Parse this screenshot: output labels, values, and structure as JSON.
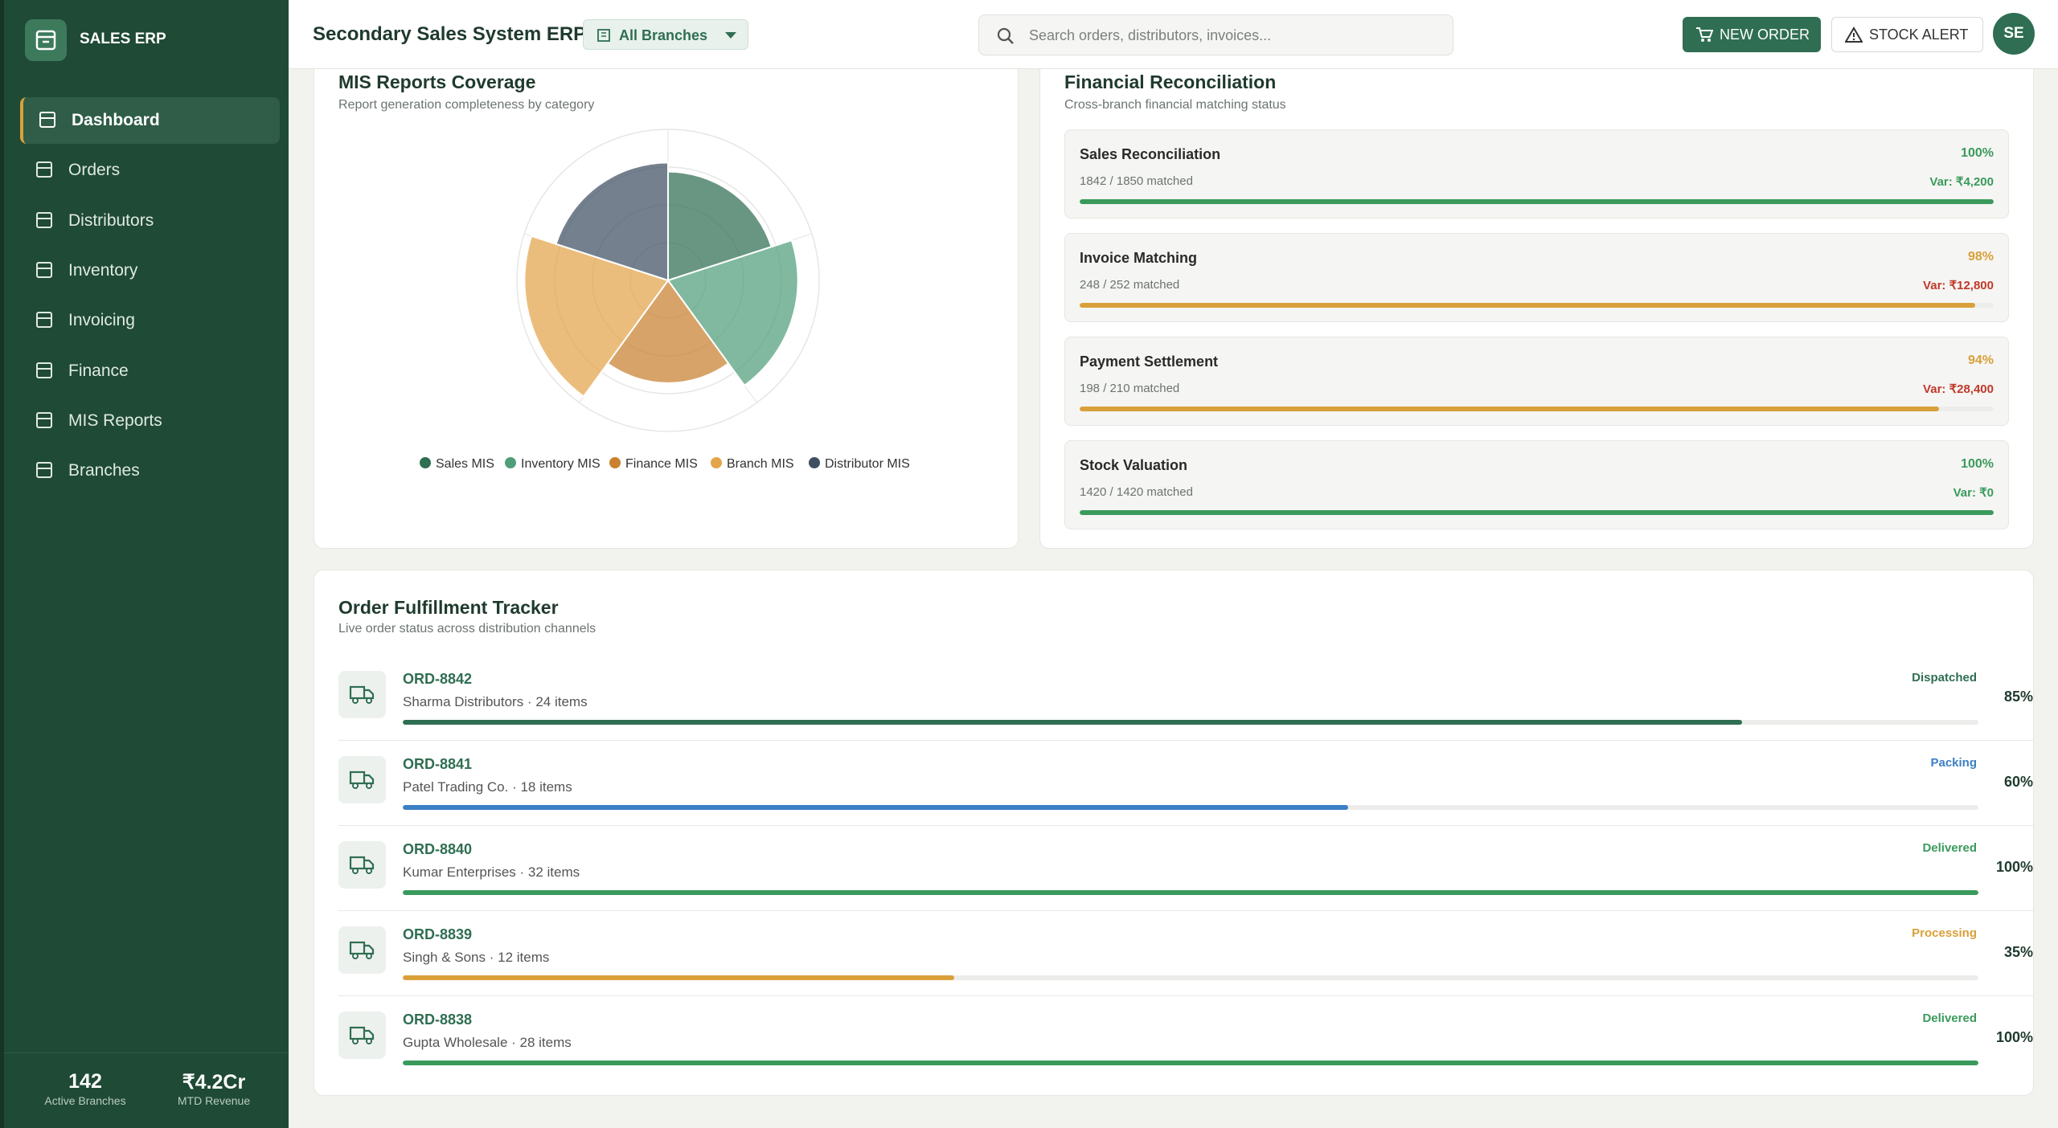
{
  "sidebar": {
    "brand": "SALES ERP",
    "nav": [
      "Dashboard",
      "Orders",
      "Distributors",
      "Inventory",
      "Invoicing",
      "Finance",
      "MIS Reports",
      "Branches"
    ],
    "stats": [
      {
        "value": "142",
        "label": "Active Branches"
      },
      {
        "value": "₹4.2Cr",
        "label": "MTD Revenue"
      }
    ]
  },
  "header": {
    "title": "Secondary Sales System ERP",
    "branch": "All Branches",
    "search_placeholder": "Search orders, distributors, invoices...",
    "buttons": [
      "NEW ORDER",
      "STOCK ALERT"
    ],
    "avatar": "SE"
  },
  "mis": {
    "title": "MIS Reports Coverage",
    "subtitle": "Report generation completeness by category",
    "chart_data": {
      "type": "polar",
      "categories": [
        "Sales MIS",
        "Inventory MIS",
        "Finance MIS",
        "Branch MIS",
        "Distributor MIS"
      ],
      "values": [
        72,
        86,
        68,
        95,
        78
      ],
      "colors": [
        "#2f6e52",
        "#4f9e7a",
        "#c9802f",
        "#e3a44a",
        "#3f4f63"
      ],
      "rlim": [
        0,
        100
      ],
      "rticks": [
        25,
        50,
        75,
        100
      ]
    }
  },
  "reconciliation": {
    "title": "Financial Reconciliation",
    "subtitle": "Cross-branch financial matching status",
    "rows": [
      {
        "name": "Sales Reconciliation",
        "pct": 100,
        "pct_label": "100%",
        "matched": "1842 / 1850 matched",
        "variance": "Var: ₹4,200",
        "color": "#3a9a5c",
        "var_color": "#3a9a5c"
      },
      {
        "name": "Invoice Matching",
        "pct": 98,
        "pct_label": "98%",
        "matched": "248 / 252 matched",
        "variance": "Var: ₹12,800",
        "color": "#d9a03a",
        "var_color": "#c0392b"
      },
      {
        "name": "Payment Settlement",
        "pct": 94,
        "pct_label": "94%",
        "matched": "198 / 210 matched",
        "variance": "Var: ₹28,400",
        "color": "#d9a03a",
        "var_color": "#c0392b"
      },
      {
        "name": "Stock Valuation",
        "pct": 100,
        "pct_label": "100%",
        "matched": "1420 / 1420 matched",
        "variance": "Var: ₹0",
        "color": "#3a9a5c",
        "var_color": "#3a9a5c"
      }
    ]
  },
  "orders": {
    "title": "Order Fulfillment Tracker",
    "subtitle": "Live order status across distribution channels",
    "rows": [
      {
        "id": "ORD-8842",
        "detail": "Sharma Distributors · 24 items",
        "status": "Dispatched",
        "pct": 85,
        "pct_label": "85%",
        "color": "#2f6e52"
      },
      {
        "id": "ORD-8841",
        "detail": "Patel Trading Co. · 18 items",
        "status": "Packing",
        "pct": 60,
        "pct_label": "60%",
        "color": "#3b7fc4"
      },
      {
        "id": "ORD-8840",
        "detail": "Kumar Enterprises · 32 items",
        "status": "Delivered",
        "pct": 100,
        "pct_label": "100%",
        "color": "#3a9a5c"
      },
      {
        "id": "ORD-8839",
        "detail": "Singh & Sons · 12 items",
        "status": "Processing",
        "pct": 35,
        "pct_label": "35%",
        "color": "#d9a03a"
      },
      {
        "id": "ORD-8838",
        "detail": "Gupta Wholesale · 28 items",
        "status": "Delivered",
        "pct": 100,
        "pct_label": "100%",
        "color": "#3a9a5c"
      }
    ]
  }
}
